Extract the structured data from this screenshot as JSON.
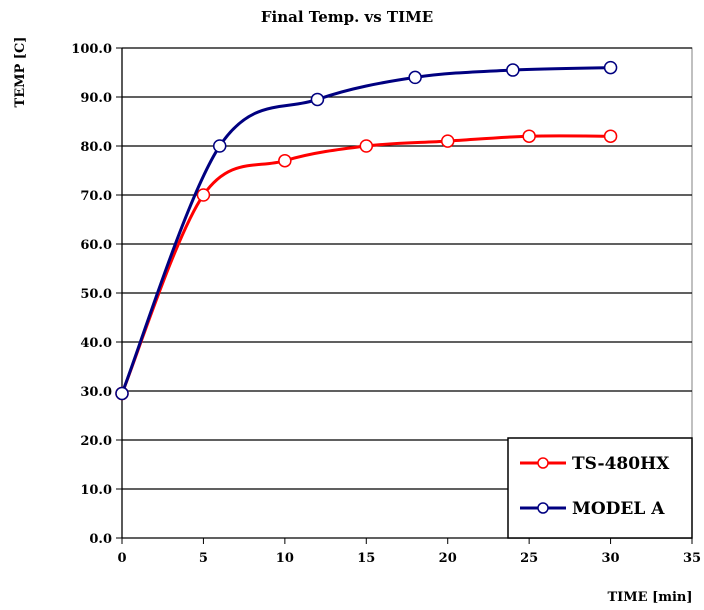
{
  "chart_data": {
    "type": "line",
    "title": "Final Temp. vs TIME",
    "xlabel": "TIME [min]",
    "ylabel": "TEMP [C]",
    "xlim": [
      0,
      35
    ],
    "ylim": [
      0,
      100
    ],
    "x_ticks": [
      "0",
      "5",
      "10",
      "15",
      "20",
      "25",
      "30",
      "35"
    ],
    "y_ticks": [
      "0.0",
      "10.0",
      "20.0",
      "30.0",
      "40.0",
      "50.0",
      "60.0",
      "70.0",
      "80.0",
      "90.0",
      "100.0"
    ],
    "grid": "horizontal",
    "legend_position": "bottom-right",
    "series": [
      {
        "name": "TS-480HX",
        "color": "#ff0000",
        "x": [
          0,
          5,
          10,
          15,
          20,
          25,
          30
        ],
        "y": [
          29.5,
          70.0,
          77.0,
          80.0,
          81.0,
          82.0,
          82.0
        ]
      },
      {
        "name": "MODEL A",
        "color": "#000080",
        "x": [
          0,
          6,
          12,
          18,
          24,
          30
        ],
        "y": [
          29.5,
          80.0,
          89.5,
          94.0,
          95.5,
          96.0
        ]
      }
    ]
  }
}
